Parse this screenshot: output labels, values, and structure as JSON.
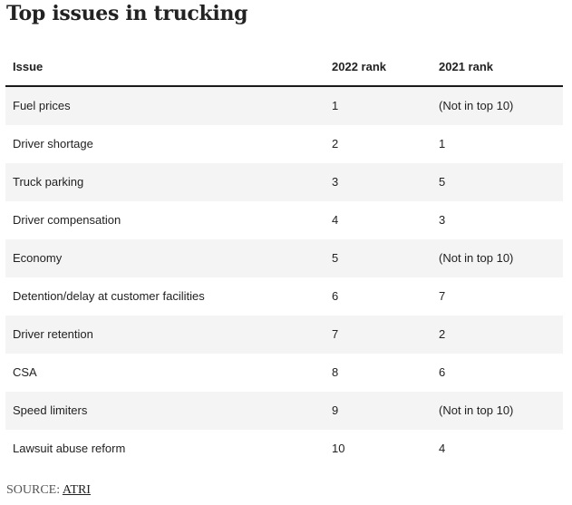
{
  "title": "Top issues in trucking",
  "table": {
    "headers": [
      "Issue",
      "2022 rank",
      "2021 rank"
    ],
    "rows": [
      [
        "Fuel prices",
        "1",
        "(Not in top 10)"
      ],
      [
        "Driver shortage",
        "2",
        "1"
      ],
      [
        "Truck parking",
        "3",
        "5"
      ],
      [
        "Driver compensation",
        "4",
        "3"
      ],
      [
        "Economy",
        "5",
        "(Not in top 10)"
      ],
      [
        "Detention/delay at customer facilities",
        "6",
        "7"
      ],
      [
        "Driver retention",
        "7",
        "2"
      ],
      [
        "CSA",
        "8",
        "6"
      ],
      [
        "Speed limiters",
        "9",
        "(Not in top 10)"
      ],
      [
        "Lawsuit abuse reform",
        "10",
        "4"
      ]
    ]
  },
  "source": {
    "label": "SOURCE:",
    "link_text": "ATRI"
  }
}
